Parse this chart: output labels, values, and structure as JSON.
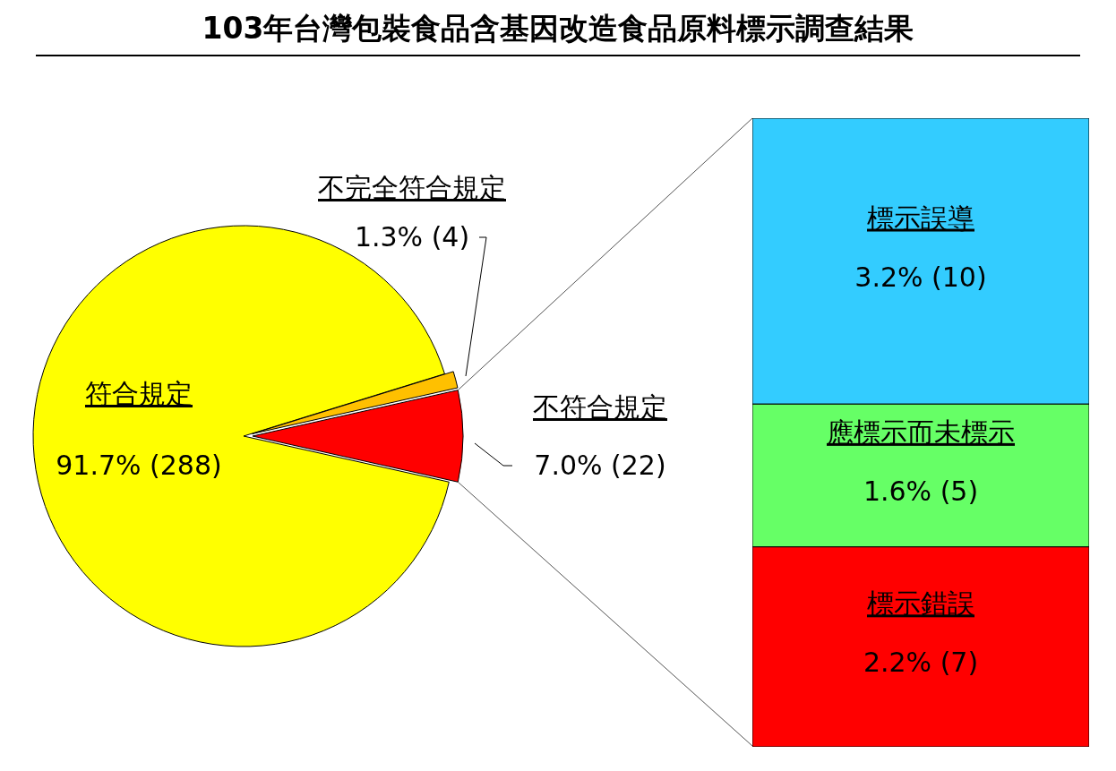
{
  "chart_data": [
    {
      "type": "pie",
      "title": "103年台灣包裝食品含基因改造食品原料標示調查結果",
      "categories": [
        "符合規定",
        "不完全符合規定",
        "不符合規定"
      ],
      "values": [
        288,
        4,
        22
      ],
      "colors": [
        "#ffff00",
        "#ffc000",
        "#ff0000"
      ],
      "value_labels": [
        "91.7% (288)",
        "1.3% (4)",
        "7.0% (22)"
      ]
    },
    {
      "type": "bar",
      "stacked": true,
      "categories": [
        null
      ],
      "series": [
        {
          "name": "標示錯誤",
          "color": "#ff0000",
          "values": [
            7
          ],
          "value_labels": [
            "2.2% (7)"
          ]
        },
        {
          "name": "應標示而未標示",
          "color": "#66ff66",
          "values": [
            5
          ],
          "value_labels": [
            "1.6% (5)"
          ]
        },
        {
          "name": "標示誤導",
          "color": "#33ccff",
          "values": [
            10
          ],
          "value_labels": [
            "3.2% (10)"
          ]
        }
      ]
    }
  ]
}
